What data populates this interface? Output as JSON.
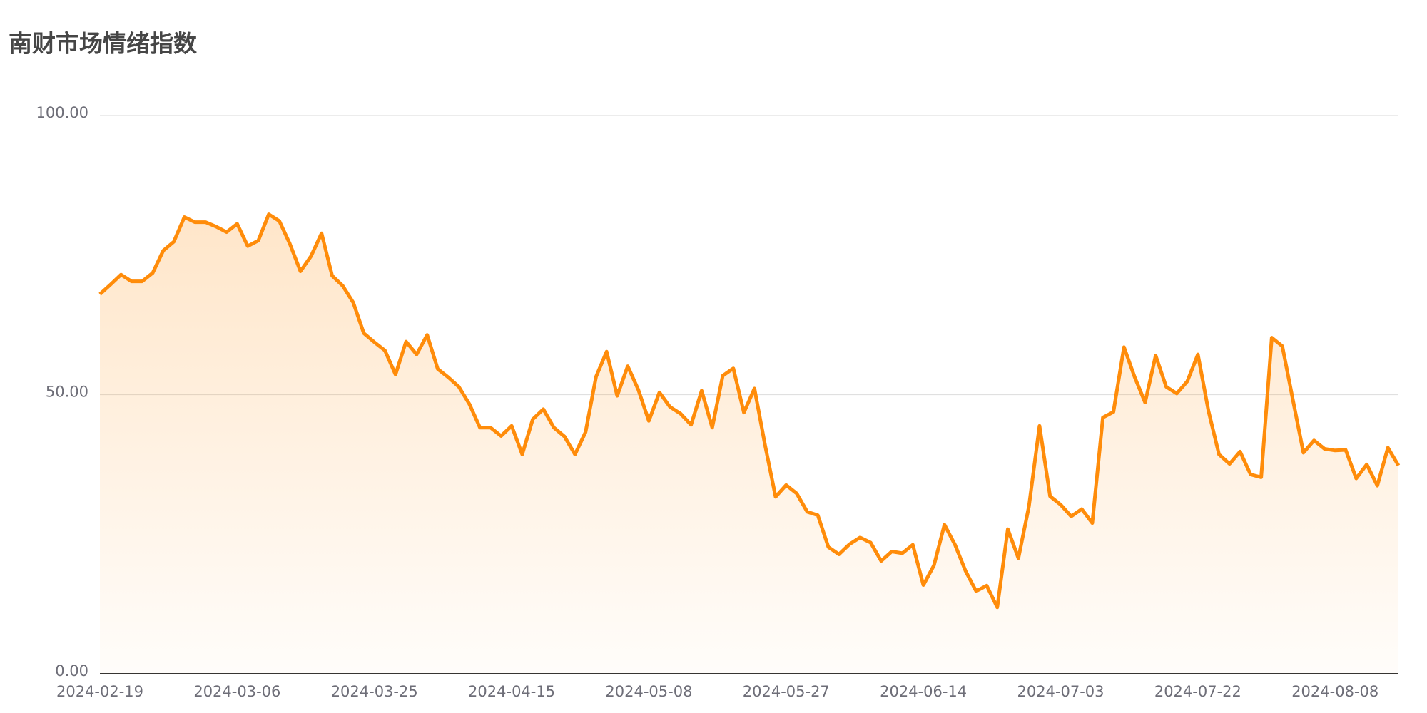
{
  "chart_data": {
    "type": "area",
    "title": "南财市场情绪指数",
    "categories": [
      "2024-02-19",
      null,
      null,
      null,
      null,
      null,
      null,
      null,
      null,
      null,
      null,
      null,
      null,
      "2024-03-06",
      null,
      null,
      null,
      null,
      null,
      null,
      null,
      null,
      null,
      null,
      null,
      null,
      "2024-03-25",
      null,
      null,
      null,
      null,
      null,
      null,
      null,
      null,
      null,
      null,
      null,
      null,
      "2024-04-15",
      null,
      null,
      null,
      null,
      null,
      null,
      null,
      null,
      null,
      null,
      null,
      null,
      "2024-05-08",
      null,
      null,
      null,
      null,
      null,
      null,
      null,
      null,
      null,
      null,
      null,
      null,
      "2024-05-27",
      null,
      null,
      null,
      null,
      null,
      null,
      null,
      null,
      null,
      null,
      null,
      null,
      "2024-06-14",
      null,
      null,
      null,
      null,
      null,
      null,
      null,
      null,
      null,
      null,
      null,
      null,
      "2024-07-03",
      null,
      null,
      null,
      null,
      null,
      null,
      null,
      null,
      null,
      null,
      null,
      null,
      "2024-07-22",
      null,
      null,
      null,
      null,
      null,
      null,
      null,
      null,
      null,
      null,
      null,
      null,
      "2024-08-08",
      null,
      null,
      null,
      null,
      null,
      null
    ],
    "values": [
      68.0,
      69.7,
      71.5,
      70.3,
      70.3,
      71.8,
      75.8,
      77.4,
      81.8,
      80.9,
      80.9,
      80.1,
      79.1,
      80.6,
      76.6,
      77.6,
      82.3,
      81.1,
      77.0,
      72.1,
      74.8,
      78.9,
      71.3,
      69.5,
      66.5,
      61.0,
      59.4,
      57.9,
      53.6,
      59.5,
      57.2,
      60.7,
      54.6,
      53.1,
      51.4,
      48.3,
      44.1,
      44.1,
      42.6,
      44.4,
      39.3,
      45.6,
      47.4,
      44.1,
      42.5,
      39.3,
      43.3,
      53.2,
      57.7,
      49.8,
      55.1,
      50.9,
      45.3,
      50.4,
      47.8,
      46.6,
      44.6,
      50.7,
      44.1,
      53.4,
      54.7,
      46.8,
      51.1,
      41.0,
      31.7,
      33.8,
      32.3,
      29.0,
      28.4,
      22.7,
      21.4,
      23.2,
      24.4,
      23.5,
      20.2,
      21.9,
      21.6,
      23.1,
      15.9,
      19.4,
      26.7,
      23.1,
      18.4,
      14.8,
      15.8,
      11.9,
      25.9,
      20.7,
      30.0,
      44.4,
      31.8,
      30.3,
      28.2,
      29.5,
      27.0,
      45.9,
      46.9,
      58.5,
      53.2,
      48.6,
      57.0,
      51.4,
      50.2,
      52.4,
      57.2,
      47.1,
      39.3,
      37.6,
      39.8,
      35.7,
      35.2,
      60.2,
      58.7,
      49.1,
      39.6,
      41.8,
      40.3,
      40.0,
      40.1,
      35.0,
      37.5,
      33.7,
      40.5,
      37.3
    ],
    "color": "#ff8c0a",
    "ylim": [
      0,
      100
    ],
    "yticks": [
      {
        "value": 0,
        "label": "0.00"
      },
      {
        "value": 50,
        "label": "50.00"
      },
      {
        "value": 100,
        "label": "100.00"
      }
    ],
    "grid": true
  }
}
